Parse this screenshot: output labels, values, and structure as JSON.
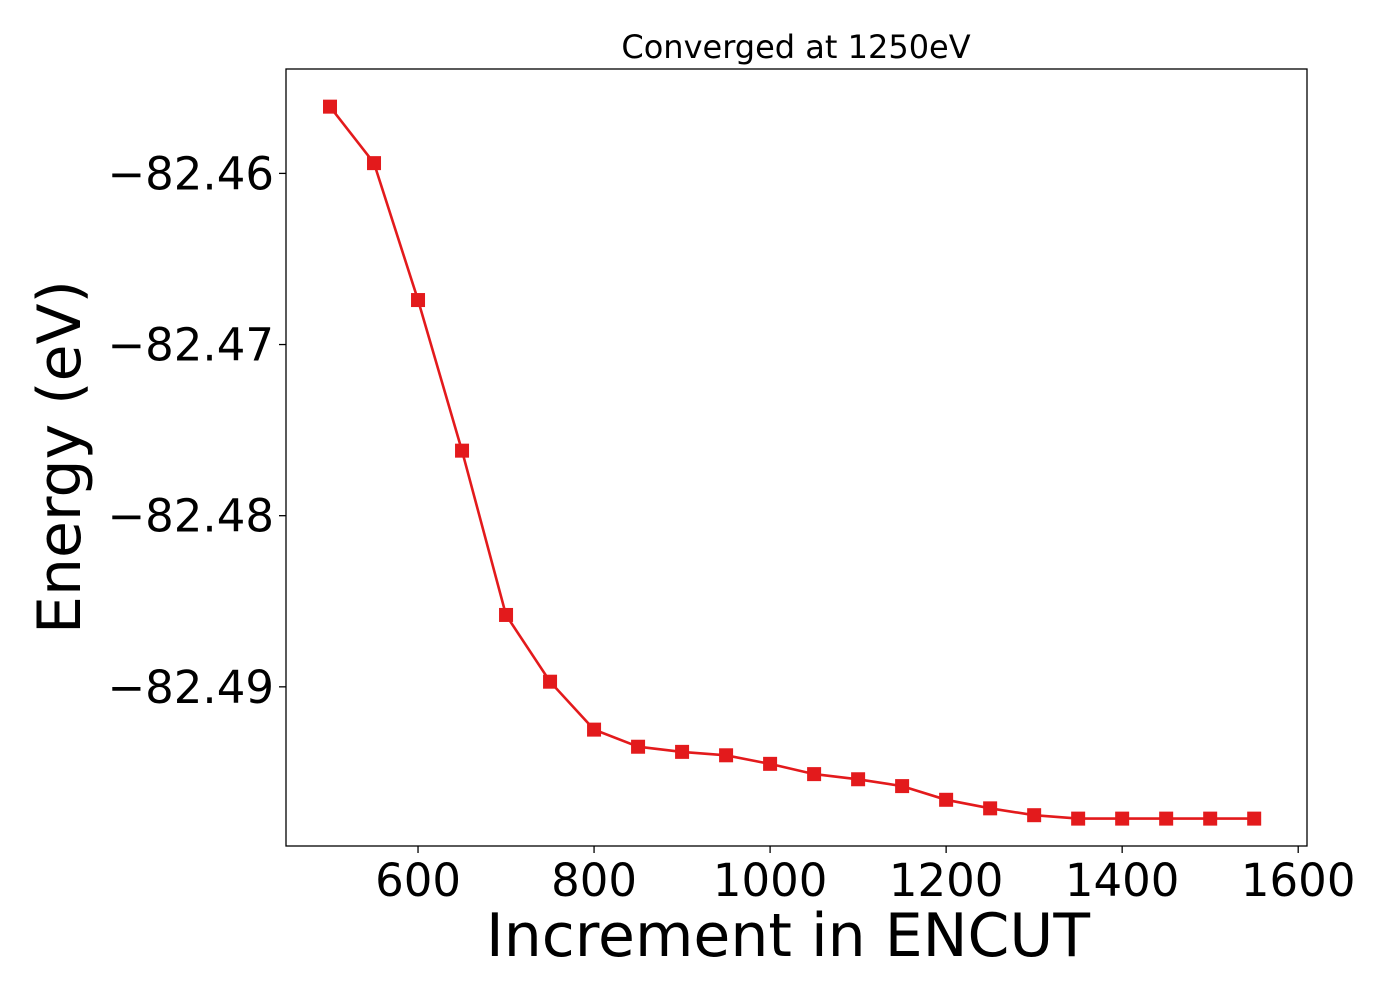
{
  "chart_data": {
    "type": "line",
    "title": "Converged at 1250eV",
    "xlabel": "Increment in ENCUT",
    "ylabel": "Energy (eV)",
    "xlim": [
      450,
      1610
    ],
    "ylim": [
      -82.4993,
      -82.4539
    ],
    "x_ticks": [
      600,
      800,
      1000,
      1200,
      1400,
      1600
    ],
    "x_tick_labels": [
      "600",
      "800",
      "1000",
      "1200",
      "1400",
      "1600"
    ],
    "y_ticks": [
      -82.46,
      -82.47,
      -82.48,
      -82.49
    ],
    "y_tick_labels": [
      "−82.46",
      "−82.47",
      "−82.48",
      "−82.49"
    ],
    "grid": false,
    "color": "#e31a1c",
    "marker": "square",
    "series": [
      {
        "x": [
          500,
          550,
          600,
          650,
          700,
          750,
          800,
          850,
          900,
          950,
          1000,
          1050,
          1100,
          1150,
          1200,
          1250,
          1300,
          1350,
          1400,
          1450,
          1500,
          1550
        ],
        "values": [
          -82.4561,
          -82.4594,
          -82.4674,
          -82.4762,
          -82.4858,
          -82.4897,
          -82.4925,
          -82.4935,
          -82.4938,
          -82.494,
          -82.4945,
          -82.4951,
          -82.4954,
          -82.4958,
          -82.4966,
          -82.4971,
          -82.4975,
          -82.4977,
          -82.4977,
          -82.4977,
          -82.4977,
          -82.4977
        ]
      }
    ]
  }
}
